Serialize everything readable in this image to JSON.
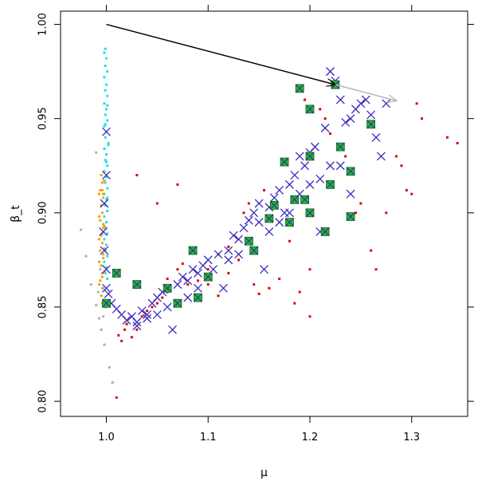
{
  "chart_data": {
    "type": "scatter",
    "xlabel": "μ",
    "ylabel": "β_t",
    "xlim": [
      0.955,
      1.355
    ],
    "ylim": [
      0.792,
      1.007
    ],
    "x_ticks": [
      "1.0",
      "1.1",
      "1.2",
      "1.3"
    ],
    "x_tick_values": [
      1.0,
      1.1,
      1.2,
      1.3
    ],
    "y_ticks": [
      "0.80",
      "0.85",
      "0.90",
      "0.95",
      "1.00"
    ],
    "y_tick_values": [
      0.8,
      0.85,
      0.9,
      0.95,
      1.0
    ],
    "grid": false,
    "legend": "none",
    "colors": {
      "gray": "#b0b0b0",
      "orange": "#f5a000",
      "cyan": "#20e0e8",
      "red": "#e00000",
      "green": "#22bb22",
      "cross": "#3a2bbf",
      "arrow_black": "#000000",
      "arrow_gray": "#b8b8b8"
    },
    "arrows": [
      {
        "name": "black-arrow",
        "from": [
          1.0,
          1.0
        ],
        "to": [
          1.225,
          0.968
        ],
        "color": "black"
      },
      {
        "name": "gray-arrow",
        "from": [
          1.225,
          0.968
        ],
        "to": [
          1.285,
          0.9595
        ],
        "color": "gray"
      }
    ],
    "series": [
      {
        "marker": "dot",
        "color": "cyan",
        "points": [
          [
            0.998,
            0.985
          ],
          [
            1.0,
            0.982
          ],
          [
            0.999,
            0.978
          ],
          [
            1.001,
            0.975
          ],
          [
            0.998,
            0.972
          ],
          [
            1.0,
            0.968
          ],
          [
            0.999,
            0.965
          ],
          [
            1.001,
            0.962
          ],
          [
            0.998,
            0.958
          ],
          [
            1.0,
            0.955
          ],
          [
            0.999,
            0.952
          ],
          [
            1.001,
            0.949
          ],
          [
            0.998,
            0.946
          ],
          [
            1.0,
            0.943
          ],
          [
            0.999,
            0.94
          ],
          [
            1.002,
            0.937
          ],
          [
            0.998,
            0.934
          ],
          [
            1.0,
            0.931
          ],
          [
            0.999,
            0.928
          ],
          [
            1.001,
            0.925
          ],
          [
            0.998,
            0.922
          ],
          [
            1.0,
            0.919
          ],
          [
            0.999,
            0.916
          ],
          [
            1.001,
            0.913
          ],
          [
            0.998,
            0.91
          ],
          [
            1.0,
            0.907
          ],
          [
            0.999,
            0.904
          ],
          [
            1.001,
            0.901
          ],
          [
            0.998,
            0.898
          ],
          [
            1.0,
            0.895
          ],
          [
            0.999,
            0.892
          ],
          [
            1.001,
            0.889
          ],
          [
            0.998,
            0.886
          ],
          [
            1.0,
            0.883
          ],
          [
            0.999,
            0.88
          ],
          [
            1.001,
            0.877
          ],
          [
            0.998,
            0.874
          ],
          [
            1.0,
            0.871
          ],
          [
            0.999,
            0.868
          ],
          [
            1.001,
            0.865
          ],
          [
            0.999,
            0.987
          ],
          [
            1.001,
            0.957
          ],
          [
            0.999,
            0.947
          ],
          [
            1.002,
            0.936
          ],
          [
            1.0,
            0.927
          ],
          [
            0.998,
            0.917
          ],
          [
            1.001,
            0.908
          ]
        ]
      },
      {
        "marker": "dot",
        "color": "orange",
        "points": [
          [
            0.995,
            0.92
          ],
          [
            0.996,
            0.916
          ],
          [
            0.994,
            0.912
          ],
          [
            0.997,
            0.908
          ],
          [
            0.995,
            0.904
          ],
          [
            0.996,
            0.9
          ],
          [
            0.994,
            0.896
          ],
          [
            0.997,
            0.892
          ],
          [
            0.995,
            0.888
          ],
          [
            0.996,
            0.884
          ],
          [
            0.994,
            0.88
          ],
          [
            0.997,
            0.876
          ],
          [
            0.995,
            0.872
          ],
          [
            0.996,
            0.868
          ],
          [
            0.994,
            0.864
          ],
          [
            0.997,
            0.86
          ],
          [
            0.995,
            0.856
          ],
          [
            0.996,
            0.852
          ],
          [
            0.998,
            0.917
          ],
          [
            0.998,
            0.905
          ],
          [
            0.998,
            0.893
          ],
          [
            0.998,
            0.881
          ],
          [
            0.998,
            0.869
          ],
          [
            0.993,
            0.91
          ],
          [
            0.993,
            0.898
          ],
          [
            0.993,
            0.886
          ],
          [
            0.993,
            0.874
          ],
          [
            0.993,
            0.862
          ],
          [
            0.997,
            0.91
          ],
          [
            0.997,
            0.894
          ],
          [
            0.997,
            0.878
          ],
          [
            0.996,
            0.912
          ],
          [
            0.996,
            0.889
          ],
          [
            0.996,
            0.866
          ]
        ]
      },
      {
        "marker": "dot",
        "color": "gray",
        "points": [
          [
            0.975,
            0.891
          ],
          [
            0.98,
            0.877
          ],
          [
            0.985,
            0.862
          ],
          [
            0.99,
            0.851
          ],
          [
            0.993,
            0.844
          ],
          [
            0.995,
            0.838
          ],
          [
            0.998,
            0.83
          ],
          [
            1.003,
            0.818
          ],
          [
            1.006,
            0.81
          ],
          [
            0.99,
            0.932
          ],
          [
            0.994,
            0.87
          ],
          [
            0.992,
            0.858
          ],
          [
            0.997,
            0.845
          ],
          [
            0.996,
            0.86
          ],
          [
            0.999,
            0.85
          ]
        ]
      },
      {
        "marker": "dot",
        "color": "red",
        "points": [
          [
            1.01,
            0.802
          ],
          [
            1.012,
            0.835
          ],
          [
            1.015,
            0.832
          ],
          [
            1.018,
            0.838
          ],
          [
            1.02,
            0.841
          ],
          [
            1.025,
            0.834
          ],
          [
            1.03,
            0.838
          ],
          [
            1.035,
            0.845
          ],
          [
            1.04,
            0.848
          ],
          [
            1.045,
            0.85
          ],
          [
            1.05,
            0.852
          ],
          [
            1.055,
            0.855
          ],
          [
            1.06,
            0.858
          ],
          [
            1.03,
            0.92
          ],
          [
            1.06,
            0.865
          ],
          [
            1.07,
            0.87
          ],
          [
            1.075,
            0.873
          ],
          [
            1.08,
            0.862
          ],
          [
            1.09,
            0.864
          ],
          [
            1.1,
            0.87
          ],
          [
            1.11,
            0.878
          ],
          [
            1.12,
            0.882
          ],
          [
            1.13,
            0.875
          ],
          [
            1.135,
            0.9
          ],
          [
            1.14,
            0.905
          ],
          [
            1.145,
            0.862
          ],
          [
            1.15,
            0.857
          ],
          [
            1.155,
            0.912
          ],
          [
            1.16,
            0.86
          ],
          [
            1.17,
            0.865
          ],
          [
            1.18,
            0.885
          ],
          [
            1.185,
            0.852
          ],
          [
            1.19,
            0.858
          ],
          [
            1.2,
            0.87
          ],
          [
            1.21,
            0.955
          ],
          [
            1.215,
            0.95
          ],
          [
            1.22,
            0.942
          ],
          [
            1.235,
            0.93
          ],
          [
            1.245,
            0.9
          ],
          [
            1.25,
            0.905
          ],
          [
            1.26,
            0.88
          ],
          [
            1.265,
            0.87
          ],
          [
            1.275,
            0.9
          ],
          [
            1.285,
            0.93
          ],
          [
            1.29,
            0.925
          ],
          [
            1.295,
            0.912
          ],
          [
            1.3,
            0.91
          ],
          [
            1.305,
            0.958
          ],
          [
            1.31,
            0.95
          ],
          [
            1.335,
            0.94
          ],
          [
            1.345,
            0.937
          ],
          [
            1.07,
            0.915
          ],
          [
            1.05,
            0.905
          ],
          [
            1.1,
            0.862
          ],
          [
            1.11,
            0.856
          ],
          [
            1.12,
            0.868
          ],
          [
            1.195,
            0.96
          ],
          [
            1.2,
            0.845
          ]
        ]
      },
      {
        "marker": "cross",
        "color": "cross",
        "points": [
          [
            1.0,
            0.943
          ],
          [
            1.0,
            0.92
          ],
          [
            0.998,
            0.905
          ],
          [
            0.997,
            0.89
          ],
          [
            0.998,
            0.88
          ],
          [
            1.0,
            0.87
          ],
          [
            1.0,
            0.86
          ],
          [
            1.002,
            0.857
          ],
          [
            1.005,
            0.852
          ],
          [
            1.01,
            0.849
          ],
          [
            1.015,
            0.846
          ],
          [
            1.02,
            0.843
          ],
          [
            1.025,
            0.845
          ],
          [
            1.03,
            0.84
          ],
          [
            1.035,
            0.848
          ],
          [
            1.04,
            0.846
          ],
          [
            1.045,
            0.852
          ],
          [
            1.05,
            0.855
          ],
          [
            1.055,
            0.858
          ],
          [
            1.06,
            0.86
          ],
          [
            1.065,
            0.838
          ],
          [
            1.07,
            0.862
          ],
          [
            1.075,
            0.866
          ],
          [
            1.08,
            0.864
          ],
          [
            1.085,
            0.87
          ],
          [
            1.09,
            0.868
          ],
          [
            1.095,
            0.872
          ],
          [
            1.1,
            0.875
          ],
          [
            1.105,
            0.87
          ],
          [
            1.11,
            0.878
          ],
          [
            1.115,
            0.86
          ],
          [
            1.12,
            0.88
          ],
          [
            1.125,
            0.888
          ],
          [
            1.13,
            0.886
          ],
          [
            1.135,
            0.892
          ],
          [
            1.14,
            0.896
          ],
          [
            1.145,
            0.9
          ],
          [
            1.15,
            0.905
          ],
          [
            1.155,
            0.87
          ],
          [
            1.16,
            0.903
          ],
          [
            1.165,
            0.908
          ],
          [
            1.17,
            0.912
          ],
          [
            1.175,
            0.9
          ],
          [
            1.18,
            0.915
          ],
          [
            1.185,
            0.92
          ],
          [
            1.19,
            0.93
          ],
          [
            1.195,
            0.925
          ],
          [
            1.2,
            0.932
          ],
          [
            1.205,
            0.935
          ],
          [
            1.21,
            0.89
          ],
          [
            1.215,
            0.945
          ],
          [
            1.22,
            0.925
          ],
          [
            1.225,
            0.97
          ],
          [
            1.23,
            0.96
          ],
          [
            1.235,
            0.948
          ],
          [
            1.24,
            0.95
          ],
          [
            1.245,
            0.955
          ],
          [
            1.25,
            0.958
          ],
          [
            1.255,
            0.96
          ],
          [
            1.26,
            0.952
          ],
          [
            1.265,
            0.94
          ],
          [
            1.27,
            0.93
          ],
          [
            1.275,
            0.958
          ],
          [
            1.22,
            0.975
          ],
          [
            1.17,
            0.895
          ],
          [
            1.16,
            0.89
          ],
          [
            1.14,
            0.885
          ],
          [
            1.12,
            0.875
          ],
          [
            1.09,
            0.86
          ],
          [
            1.08,
            0.855
          ],
          [
            1.06,
            0.85
          ],
          [
            1.05,
            0.846
          ],
          [
            1.04,
            0.844
          ],
          [
            1.03,
            0.842
          ],
          [
            1.2,
            0.915
          ],
          [
            1.21,
            0.918
          ],
          [
            1.23,
            0.925
          ],
          [
            1.24,
            0.91
          ],
          [
            1.19,
            0.91
          ],
          [
            1.18,
            0.9
          ],
          [
            1.15,
            0.895
          ],
          [
            1.13,
            0.878
          ]
        ]
      },
      {
        "marker": "boxed-cross",
        "color": "green",
        "points": [
          [
            1.225,
            0.968
          ],
          [
            1.19,
            0.966
          ],
          [
            1.2,
            0.955
          ],
          [
            1.26,
            0.947
          ],
          [
            1.23,
            0.935
          ],
          [
            1.2,
            0.93
          ],
          [
            1.175,
            0.927
          ],
          [
            1.24,
            0.922
          ],
          [
            1.22,
            0.915
          ],
          [
            1.185,
            0.907
          ],
          [
            1.165,
            0.904
          ],
          [
            1.2,
            0.9
          ],
          [
            1.24,
            0.898
          ],
          [
            1.18,
            0.895
          ],
          [
            1.215,
            0.89
          ],
          [
            1.14,
            0.885
          ],
          [
            1.145,
            0.88
          ],
          [
            1.085,
            0.88
          ],
          [
            1.06,
            0.86
          ],
          [
            1.09,
            0.855
          ],
          [
            1.1,
            0.866
          ],
          [
            1.07,
            0.852
          ],
          [
            1.03,
            0.862
          ],
          [
            1.01,
            0.868
          ],
          [
            1.0,
            0.852
          ],
          [
            1.16,
            0.897
          ],
          [
            1.195,
            0.907
          ]
        ]
      }
    ]
  }
}
